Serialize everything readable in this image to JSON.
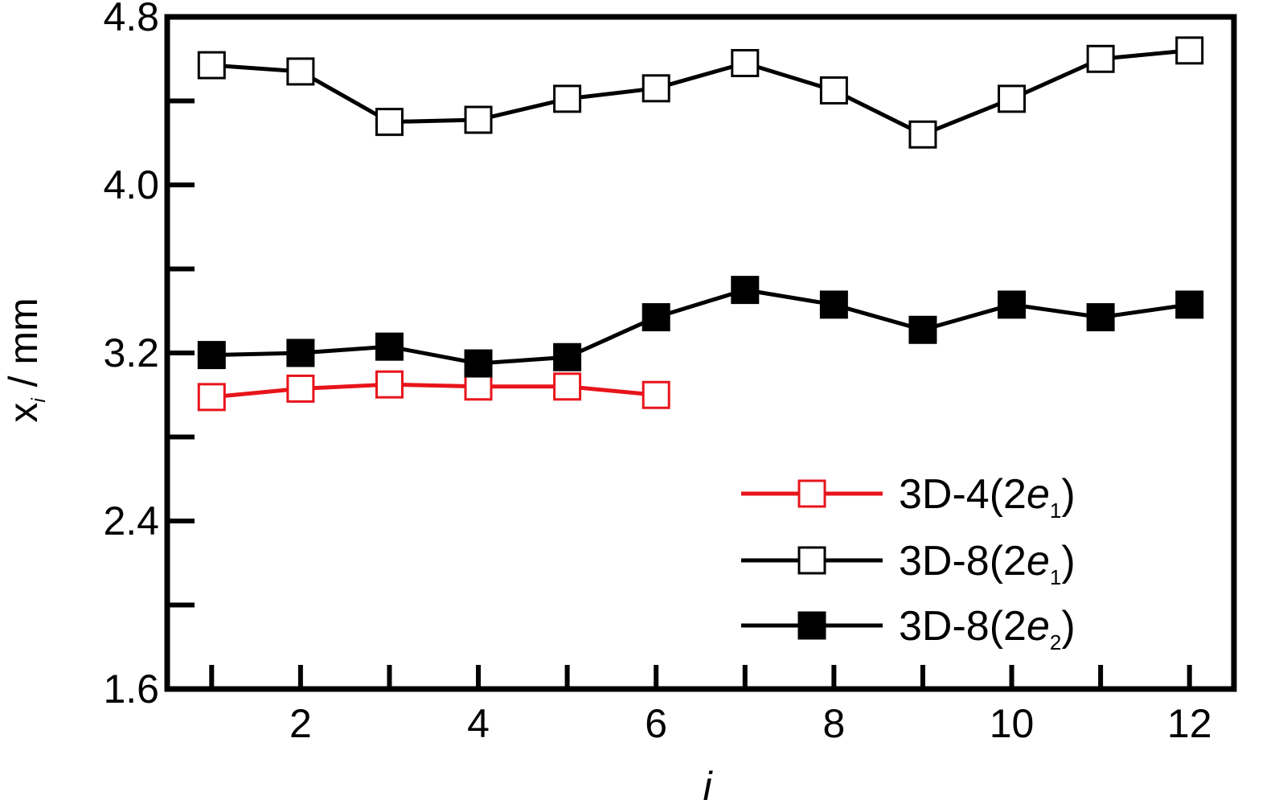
{
  "chart_data": {
    "type": "line",
    "title": "",
    "xlabel": "i",
    "ylabel": {
      "base": "x",
      "sub": "i",
      "rest": " / mm"
    },
    "xlim": [
      0.5,
      12.5
    ],
    "ylim": [
      1.6,
      4.8
    ],
    "xticks": [
      2,
      4,
      6,
      8,
      10,
      12
    ],
    "xtick_labels": [
      "2",
      "4",
      "6",
      "8",
      "10",
      "12"
    ],
    "yticks": [
      1.6,
      2.4,
      3.2,
      4.0,
      4.8
    ],
    "ytick_labels": [
      "1.6",
      "2.4",
      "3.2",
      "4.0",
      "4.8"
    ],
    "grid": false,
    "legend_position": "bottom-right",
    "series": [
      {
        "name": {
          "base": "3D-4(2",
          "italic": "e",
          "sub": "1",
          "tail": ")"
        },
        "color": "#e8141b",
        "marker": "open-square",
        "x": [
          1,
          2,
          3,
          4,
          5,
          6
        ],
        "y": [
          2.99,
          3.03,
          3.05,
          3.04,
          3.04,
          3.0
        ]
      },
      {
        "name": {
          "base": "3D-8(2",
          "italic": "e",
          "sub": "1",
          "tail": ")"
        },
        "color": "#000000",
        "marker": "open-square",
        "x": [
          1,
          2,
          3,
          4,
          5,
          6,
          7,
          8,
          9,
          10,
          11,
          12
        ],
        "y": [
          4.57,
          4.54,
          4.3,
          4.31,
          4.41,
          4.46,
          4.58,
          4.45,
          4.24,
          4.41,
          4.6,
          4.64
        ]
      },
      {
        "name": {
          "base": "3D-8(2",
          "italic": "e",
          "sub": "2",
          "tail": ")"
        },
        "color": "#000000",
        "marker": "filled-square",
        "x": [
          1,
          2,
          3,
          4,
          5,
          6,
          7,
          8,
          9,
          10,
          11,
          12
        ],
        "y": [
          3.19,
          3.2,
          3.23,
          3.15,
          3.18,
          3.37,
          3.5,
          3.43,
          3.31,
          3.43,
          3.37,
          3.43
        ]
      }
    ]
  }
}
